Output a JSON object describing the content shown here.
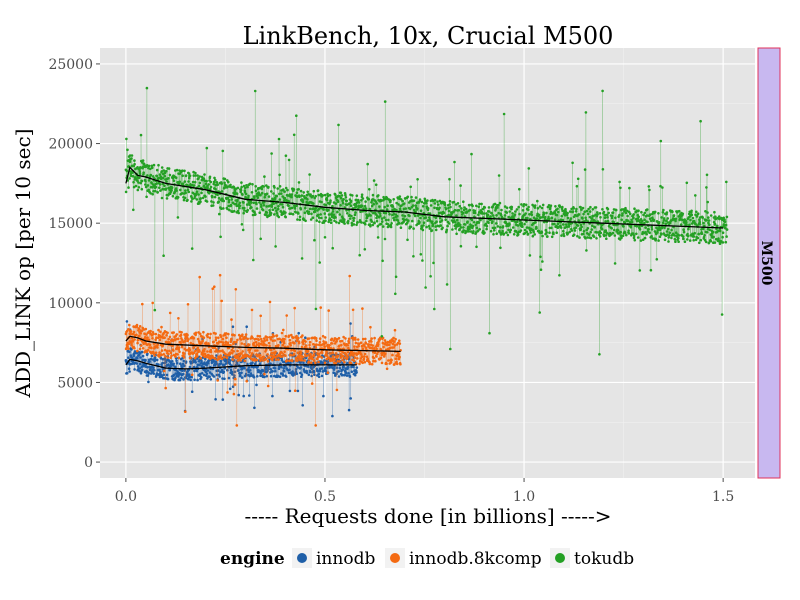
{
  "chart_data": {
    "type": "scatter",
    "title": "LinkBench, 10x, Crucial M500",
    "xlabel": "----- Requests done [in billions] ----->",
    "ylabel": "ADD_LINK op [per 10 sec]",
    "facet_label": "M500",
    "xlim": [
      -0.065,
      1.58
    ],
    "ylim": [
      -1000,
      26000
    ],
    "x_ticks": [
      0.0,
      0.5,
      1.0,
      1.5
    ],
    "x_tick_labels": [
      "0.0",
      "0.5",
      "1.0",
      "1.5"
    ],
    "y_ticks": [
      0,
      5000,
      10000,
      15000,
      20000,
      25000
    ],
    "y_tick_labels": [
      "0",
      "5000",
      "10000",
      "15000",
      "20000",
      "25000"
    ],
    "grid": true,
    "legend": {
      "title": "engine",
      "position": "bottom",
      "entries": [
        "innodb",
        "innodb.8kcomp",
        "tokudb"
      ]
    },
    "colors": {
      "innodb": "#1f5fa8",
      "innodb.8kcomp": "#f46a12",
      "tokudb": "#24a024",
      "panel_bg": "#e5e5e5",
      "strip_bg": "#c8b8f0",
      "strip_border": "#e0305a",
      "smooth": "#000000"
    },
    "series": [
      {
        "name": "innodb",
        "x_range": [
          0.0,
          0.58
        ],
        "smooth": {
          "x": [
            0.0,
            0.01,
            0.03,
            0.05,
            0.1,
            0.15,
            0.2,
            0.3,
            0.4,
            0.5,
            0.58
          ],
          "y": [
            6100,
            6450,
            6350,
            6200,
            5900,
            5850,
            5900,
            6050,
            6100,
            6100,
            6100
          ]
        },
        "band_width": 1500,
        "outlier_low": 1900,
        "outlier_high": 9300
      },
      {
        "name": "innodb.8kcomp",
        "x_range": [
          0.0,
          0.69
        ],
        "smooth": {
          "x": [
            0.0,
            0.01,
            0.03,
            0.05,
            0.1,
            0.2,
            0.3,
            0.4,
            0.5,
            0.6,
            0.69
          ],
          "y": [
            7600,
            7900,
            7800,
            7600,
            7400,
            7300,
            7200,
            7150,
            7050,
            7000,
            6950
          ]
        },
        "band_width": 1700,
        "outlier_low": 2300,
        "outlier_high": 13600
      },
      {
        "name": "tokudb",
        "x_range": [
          0.0,
          1.51
        ],
        "smooth": {
          "x": [
            0.0,
            0.01,
            0.03,
            0.05,
            0.1,
            0.2,
            0.3,
            0.4,
            0.5,
            0.6,
            0.7,
            0.8,
            0.9,
            1.0,
            1.1,
            1.2,
            1.3,
            1.4,
            1.5
          ],
          "y": [
            17500,
            18500,
            18000,
            17900,
            17500,
            17100,
            16500,
            16300,
            16000,
            15800,
            15700,
            15400,
            15300,
            15200,
            15100,
            15000,
            14900,
            14800,
            14700
          ]
        },
        "band_width": 2000,
        "outlier_low": 5900,
        "outlier_high": 24800
      }
    ]
  }
}
